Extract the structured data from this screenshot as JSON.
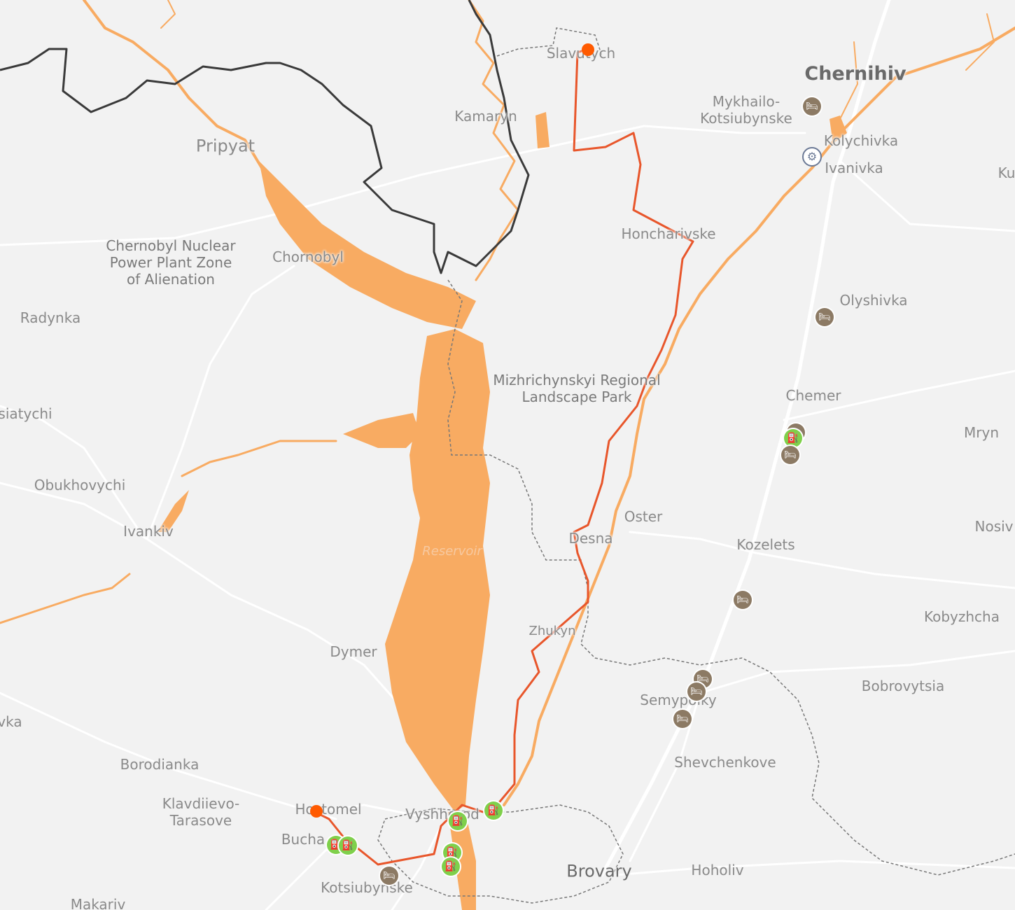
{
  "colors": {
    "background": "#f2f2f2",
    "water": "#f8ab62",
    "river": "#f8ab62",
    "route": "#e8562b",
    "country_border": "#3a3a3a",
    "region_border": "#777777",
    "road": "#ffffff",
    "label": "#8a8a8a",
    "lodging_marker": "#8c7a64",
    "fuel_marker": "#7fd04b",
    "endpoint_marker": "#ff5a00"
  },
  "places": {
    "chernihiv": "Chernihiv",
    "slavutych": "Slavutych",
    "mykhailo_kotsiubynske": "Mykhailo-\nKotsiubynske",
    "kolychivka": "Kolychivka",
    "ivanivka": "Ivanivka",
    "kamaryn": "Kamaryn",
    "pripyat": "Pripyat",
    "chornobyl": "Chornobyl",
    "exclusion_zone": "Chernobyl Nuclear\nPower Plant Zone\nof Alienation",
    "honcharivske": "Honcharivske",
    "olyshivka": "Olyshivka",
    "radynka": "Radynka",
    "siatychi": "siatychi",
    "mizhrichynskyi_park": "Mizhrichynskyi Regional\nLandscape Park",
    "chemer": "Chemer",
    "mryn": "Mryn",
    "obukhovychi": "Obukhovychi",
    "ivankiv": "Ivankiv",
    "oster": "Oster",
    "desna": "Desna",
    "kozelets": "Kozelets",
    "nosiv": "Nosiv",
    "reservoir": "Reservoir",
    "kobyzhcha": "Kobyzhcha",
    "zhukyn": "Zhukyn",
    "dymer": "Dymer",
    "bobrovytsia": "Bobrovytsia",
    "semypolky": "Semypolky",
    "vka": "vka",
    "borodianka": "Borodianka",
    "shevchenkove": "Shevchenkove",
    "klavdiievo_tarasove": "Klavdiievo-\nTarasove",
    "hostomel": "Hostomel",
    "vyshhorod": "Vyshhorod",
    "bucha": "Bucha",
    "brovary": "Brovary",
    "hoholiv": "Hoholiv",
    "kotsiubynske": "Kotsiubynske",
    "makariv": "Makariv",
    "ku": "Ku"
  },
  "markers": {
    "lodging_icon": "bed-icon",
    "fuel_icon": "fuel-pump-icon",
    "service_icon": "tire-icon",
    "lodging_glyph": "🛏",
    "fuel_glyph": "⛽",
    "service_glyph": "⚙"
  }
}
